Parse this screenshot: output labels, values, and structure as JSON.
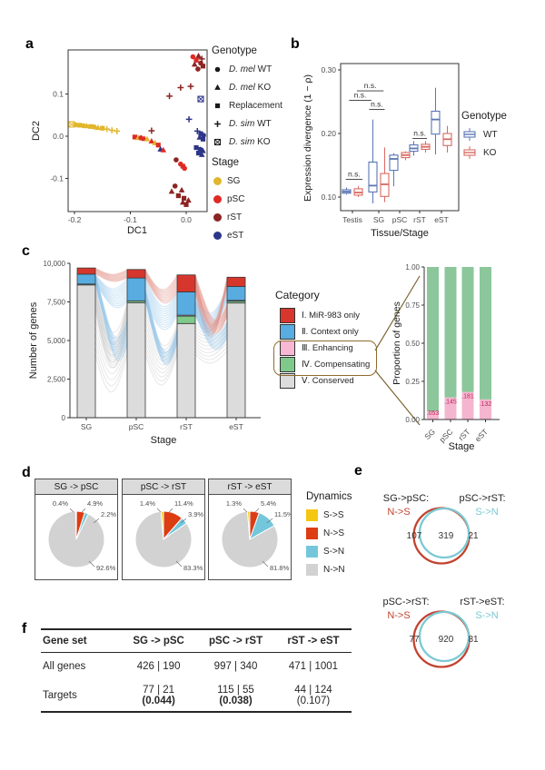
{
  "panels": {
    "a": "a",
    "b": "b",
    "c": "c",
    "d": "d",
    "e": "e",
    "f": "f"
  },
  "chart_data": [
    {
      "id": "a",
      "type": "scatter",
      "xlabel": "DC1",
      "ylabel": "DC2",
      "xticks": [
        -0.2,
        -0.1,
        0.0
      ],
      "xtick_labels": [
        "-0.2",
        "-0.1",
        "0.0"
      ],
      "yticks": [
        -0.1,
        0.0,
        0.1
      ],
      "ytick_labels": [
        "-0.1",
        "0.0",
        "0.1"
      ],
      "xlim": [
        -0.211,
        0.037
      ],
      "ylim": [
        -0.178,
        0.204
      ],
      "stage_colors": {
        "SG": "#E2B62C",
        "pSC": "#DF2A25",
        "rST": "#8C2423",
        "eST": "#2C3588"
      },
      "legend_genotype": {
        "title": "Genotype",
        "items": [
          {
            "shape": "circle",
            "italic": "D. mel",
            "rest": " WT"
          },
          {
            "shape": "triangle",
            "italic": "D. mel",
            "rest": " KO"
          },
          {
            "shape": "square",
            "italic": "",
            "rest": "Replacement"
          },
          {
            "shape": "plus",
            "italic": "D. sim",
            "rest": " WT"
          },
          {
            "shape": "boxx",
            "italic": "D. sim",
            "rest": " KO"
          }
        ]
      },
      "legend_stage": {
        "title": "Stage",
        "items": [
          {
            "label": "SG",
            "color": "#E2B62C"
          },
          {
            "label": "pSC",
            "color": "#DF2A25"
          },
          {
            "label": "rST",
            "color": "#8C2423"
          },
          {
            "label": "eST",
            "color": "#2C3588"
          }
        ]
      },
      "points": [
        [
          -0.205,
          0.028,
          "SG",
          "boxx"
        ],
        [
          -0.198,
          0.027,
          "SG",
          "circle"
        ],
        [
          -0.191,
          0.026,
          "SG",
          "square"
        ],
        [
          -0.184,
          0.025,
          "SG",
          "circle"
        ],
        [
          -0.178,
          0.024,
          "SG",
          "triangle"
        ],
        [
          -0.171,
          0.023,
          "SG",
          "square"
        ],
        [
          -0.165,
          0.022,
          "SG",
          "circle"
        ],
        [
          -0.158,
          0.02,
          "SG",
          "triangle"
        ],
        [
          -0.15,
          0.019,
          "SG",
          "square"
        ],
        [
          -0.142,
          0.017,
          "SG",
          "plus"
        ],
        [
          -0.133,
          0.014,
          "SG",
          "plus"
        ],
        [
          -0.124,
          0.012,
          "SG",
          "plus"
        ],
        [
          -0.062,
          0.013,
          "rST",
          "plus"
        ],
        [
          -0.092,
          -0.002,
          "pSC",
          "square"
        ],
        [
          -0.086,
          -0.004,
          "SG",
          "triangle"
        ],
        [
          -0.081,
          -0.004,
          "pSC",
          "circle"
        ],
        [
          -0.075,
          -0.006,
          "pSC",
          "triangle"
        ],
        [
          -0.07,
          -0.007,
          "SG",
          "triangle"
        ],
        [
          -0.062,
          -0.012,
          "pSC",
          "triangle"
        ],
        [
          -0.056,
          -0.016,
          "SG",
          "triangle"
        ],
        [
          -0.05,
          -0.021,
          "pSC",
          "square"
        ],
        [
          -0.046,
          -0.031,
          "eST",
          "triangle"
        ],
        [
          -0.041,
          -0.033,
          "pSC",
          "triangle"
        ],
        [
          -0.018,
          -0.056,
          "rST",
          "circle"
        ],
        [
          -0.01,
          -0.066,
          "pSC",
          "circle"
        ],
        [
          -0.006,
          -0.071,
          "pSC",
          "square"
        ],
        [
          -0.003,
          -0.076,
          "pSC",
          "circle"
        ],
        [
          -0.02,
          -0.118,
          "rST",
          "circle"
        ],
        [
          -0.026,
          -0.131,
          "rST",
          "triangle"
        ],
        [
          -0.008,
          -0.128,
          "rST",
          "triangle"
        ],
        [
          -0.014,
          -0.141,
          "rST",
          "square"
        ],
        [
          -0.004,
          -0.147,
          "rST",
          "square"
        ],
        [
          0.004,
          -0.152,
          "rST",
          "triangle"
        ],
        [
          -0.006,
          -0.157,
          "rST",
          "triangle"
        ],
        [
          0.0,
          -0.162,
          "rST",
          "square"
        ],
        [
          0.012,
          0.188,
          "pSC",
          "circle"
        ],
        [
          0.022,
          0.19,
          "rST",
          "triangle"
        ],
        [
          0.028,
          0.183,
          "rST",
          "plus"
        ],
        [
          0.018,
          0.18,
          "pSC",
          "square"
        ],
        [
          0.026,
          0.173,
          "rST",
          "circle"
        ],
        [
          0.015,
          0.17,
          "rST",
          "triangle"
        ],
        [
          0.03,
          0.166,
          "rST",
          "square"
        ],
        [
          0.021,
          0.159,
          "rST",
          "circle"
        ],
        [
          -0.01,
          0.115,
          "rST",
          "plus"
        ],
        [
          0.008,
          0.118,
          "rST",
          "plus"
        ],
        [
          -0.03,
          0.095,
          "rST",
          "plus"
        ],
        [
          0.026,
          0.088,
          "eST",
          "boxx"
        ],
        [
          0.005,
          0.04,
          "eST",
          "plus"
        ],
        [
          0.02,
          0.012,
          "eST",
          "plus"
        ],
        [
          0.026,
          0.006,
          "eST",
          "square"
        ],
        [
          0.031,
          0.002,
          "eST",
          "circle"
        ],
        [
          0.024,
          -0.003,
          "eST",
          "triangle"
        ],
        [
          0.03,
          -0.007,
          "eST",
          "square"
        ],
        [
          0.018,
          -0.027,
          "eST",
          "square"
        ],
        [
          0.025,
          -0.031,
          "eST",
          "circle"
        ],
        [
          0.03,
          -0.035,
          "eST",
          "triangle"
        ],
        [
          0.022,
          -0.04,
          "eST",
          "square"
        ],
        [
          0.028,
          -0.044,
          "eST",
          "triangle"
        ]
      ]
    },
    {
      "id": "b",
      "type": "box",
      "ylabel": "Expression divergence (1 − ρ)",
      "xlabel": "Tissue/Stage",
      "yticks": [
        0.1,
        0.2,
        0.3
      ],
      "ytick_labels": [
        "0.10",
        "0.20",
        "0.30"
      ],
      "categories": [
        "Testis",
        "SG",
        "pSC",
        "rST",
        "eST"
      ],
      "series": [
        {
          "name": "WT",
          "color": "#5B76B4",
          "boxes": [
            {
              "lo": 0.104,
              "q1": 0.106,
              "med": 0.1085,
              "q3": 0.1115,
              "hi": 0.115
            },
            {
              "lo": 0.09,
              "q1": 0.108,
              "med": 0.118,
              "q3": 0.155,
              "hi": 0.222
            },
            {
              "lo": 0.117,
              "q1": 0.142,
              "med": 0.16,
              "q3": 0.166,
              "hi": 0.169
            },
            {
              "lo": 0.165,
              "q1": 0.172,
              "med": 0.1765,
              "q3": 0.182,
              "hi": 0.188
            },
            {
              "lo": 0.167,
              "q1": 0.199,
              "med": 0.222,
              "q3": 0.235,
              "hi": 0.272
            }
          ]
        },
        {
          "name": "KO",
          "color": "#D96A62",
          "boxes": [
            {
              "lo": 0.1,
              "q1": 0.103,
              "med": 0.107,
              "q3": 0.113,
              "hi": 0.117
            },
            {
              "lo": 0.092,
              "q1": 0.101,
              "med": 0.12,
              "q3": 0.137,
              "hi": 0.178
            },
            {
              "lo": 0.158,
              "q1": 0.162,
              "med": 0.166,
              "q3": 0.17,
              "hi": 0.172
            },
            {
              "lo": 0.17,
              "q1": 0.175,
              "med": 0.179,
              "q3": 0.183,
              "hi": 0.188
            },
            {
              "lo": 0.17,
              "q1": 0.181,
              "med": 0.191,
              "q3": 0.2,
              "hi": 0.212
            }
          ]
        }
      ],
      "ns_label": "n.s.",
      "ns": [
        {
          "x1": -0.3,
          "x2": 0.45,
          "y": 0.128
        },
        {
          "x1": -0.15,
          "x2": 0.85,
          "y": 0.252
        },
        {
          "x1": 0.2,
          "x2": 1.4,
          "y": 0.267
        },
        {
          "x1": 0.75,
          "x2": 1.45,
          "y": 0.238
        },
        {
          "x1": 2.7,
          "x2": 3.35,
          "y": 0.192
        }
      ],
      "legend": {
        "title": "Genotype",
        "items": [
          {
            "label": "WT",
            "color": "#5B76B4"
          },
          {
            "label": "KO",
            "color": "#D96A62"
          }
        ]
      }
    },
    {
      "id": "c_left",
      "type": "bar",
      "ylabel": "Number of genes",
      "xlabel": "Stage",
      "categories": [
        "SG",
        "pSC",
        "rST",
        "eST"
      ],
      "yticks": [
        0,
        2500,
        5000,
        7500,
        10000
      ],
      "ytick_labels": [
        "0",
        "2,500",
        "5,000",
        "7,500",
        "10,000"
      ],
      "ylim": [
        0,
        10000
      ],
      "series": [
        {
          "name": "Ⅴ. Conserved",
          "color": "#DCDCDC",
          "values": [
            8600,
            7450,
            6100,
            7430
          ]
        },
        {
          "name": "Ⅳ. Compensating",
          "color": "#7FC98B",
          "values": [
            60,
            120,
            480,
            120
          ]
        },
        {
          "name": "Ⅲ. Enhancing",
          "color": "#F8B8D3",
          "values": [
            0,
            0,
            60,
            50
          ]
        },
        {
          "name": "Ⅱ. Context only",
          "color": "#58ACE0",
          "values": [
            640,
            1480,
            1510,
            900
          ]
        },
        {
          "name": "Ⅰ. MiR-983 only",
          "color": "#D6362C",
          "values": [
            400,
            550,
            1100,
            600
          ]
        }
      ],
      "legend": {
        "title": "Category",
        "items": [
          {
            "label": "Ⅰ. MiR-983 only",
            "color": "#D6362C"
          },
          {
            "label": "Ⅱ. Context only",
            "color": "#58ACE0"
          },
          {
            "label": "Ⅲ. Enhancing",
            "color": "#F8B8D3"
          },
          {
            "label": "Ⅳ. Compensating",
            "color": "#7FC98B"
          },
          {
            "label": "Ⅴ. Conserved",
            "color": "#DCDCDC"
          }
        ]
      },
      "flows": [
        {
          "f": 0,
          "t": 1,
          "s0": [
            4100,
            8600
          ],
          "s1": [
            4100,
            7450
          ],
          "c": "gray",
          "sag": 55
        },
        {
          "f": 0,
          "t": 1,
          "s0": [
            7000,
            8600
          ],
          "s1": [
            5800,
            7450
          ],
          "c": "gray",
          "sag": 70
        },
        {
          "f": 0,
          "t": 1,
          "s0": [
            8650,
            9280
          ],
          "s1": [
            4750,
            6400
          ],
          "c": "blue",
          "sag": 50
        },
        {
          "f": 0,
          "t": 1,
          "s0": [
            8650,
            9280
          ],
          "s1": [
            7560,
            9020
          ],
          "c": "blue",
          "sag": 18
        },
        {
          "f": 0,
          "t": 1,
          "s0": [
            9320,
            9690
          ],
          "s1": [
            9080,
            9590
          ],
          "c": "red",
          "sag": 8
        },
        {
          "f": 1,
          "t": 2,
          "s0": [
            4100,
            7450
          ],
          "s1": [
            4100,
            6100
          ],
          "c": "gray",
          "sag": 45
        },
        {
          "f": 1,
          "t": 2,
          "s0": [
            7560,
            9020
          ],
          "s1": [
            6670,
            8140
          ],
          "c": "blue",
          "sag": 30
        },
        {
          "f": 1,
          "t": 2,
          "s0": [
            7560,
            8300
          ],
          "s1": [
            4900,
            5800
          ],
          "c": "blue",
          "sag": 55
        },
        {
          "f": 1,
          "t": 2,
          "s0": [
            9080,
            9590
          ],
          "s1": [
            8160,
            9240
          ],
          "c": "red",
          "sag": 25
        },
        {
          "f": 2,
          "t": 3,
          "s0": [
            4100,
            6100
          ],
          "s1": [
            4300,
            7000
          ],
          "c": "gray",
          "sag": 15
        },
        {
          "f": 2,
          "t": 3,
          "s0": [
            6670,
            8140
          ],
          "s1": [
            7610,
            8490
          ],
          "c": "blue",
          "sag": 35
        },
        {
          "f": 2,
          "t": 3,
          "s0": [
            8160,
            9240
          ],
          "s1": [
            8560,
            9090
          ],
          "c": "red",
          "sag": 70
        },
        {
          "f": 2,
          "t": 3,
          "s0": [
            8300,
            9240
          ],
          "s1": [
            6600,
            7400
          ],
          "c": "red",
          "sag": 40
        },
        {
          "f": 2,
          "t": 3,
          "s0": [
            6670,
            7600
          ],
          "s1": [
            5200,
            6200
          ],
          "c": "blue",
          "sag": 30
        }
      ]
    },
    {
      "id": "c_right",
      "type": "bar",
      "ylabel": "Proportion of genes",
      "xlabel": "Stage",
      "categories": [
        "SG",
        "pSC",
        "rST",
        "eST"
      ],
      "ytick_labels": [
        "0.00",
        "0.25",
        "0.50",
        "0.75",
        "1.00"
      ],
      "pink_values": [
        0.053,
        0.145,
        0.181,
        0.132
      ],
      "pink_labels": [
        ".053",
        ".145",
        ".181",
        ".132"
      ],
      "pink_color": "#F4B6CF",
      "green_color": "#8BC79B",
      "label_color": "#C2255C"
    },
    {
      "id": "d",
      "type": "pie",
      "legend": {
        "title": "Dynamics",
        "items": [
          {
            "label": "S->S",
            "color": "#F5C712"
          },
          {
            "label": "N->S",
            "color": "#DC3D13"
          },
          {
            "label": "S->N",
            "color": "#74C7DA"
          },
          {
            "label": "N->N",
            "color": "#D2D2D2"
          }
        ]
      },
      "facets": [
        {
          "title": "SG -> pSC",
          "slices": [
            {
              "name": "N->S",
              "pct": 4.9,
              "label": "4.9%"
            },
            {
              "name": "S->N",
              "pct": 2.2,
              "label": "2.2%"
            },
            {
              "name": "N->N",
              "pct": 92.6,
              "label": "92.6%"
            },
            {
              "name": "S->S",
              "pct": 0.4,
              "label": "0.4%"
            }
          ]
        },
        {
          "title": "pSC -> rST",
          "slices": [
            {
              "name": "N->S",
              "pct": 11.4,
              "label": "11.4%"
            },
            {
              "name": "S->N",
              "pct": 3.9,
              "label": "3.9%"
            },
            {
              "name": "N->N",
              "pct": 83.3,
              "label": "83.3%"
            },
            {
              "name": "S->S",
              "pct": 1.4,
              "label": "1.4%"
            }
          ]
        },
        {
          "title": "rST -> eST",
          "slices": [
            {
              "name": "N->S",
              "pct": 5.4,
              "label": "5.4%"
            },
            {
              "name": "S->N",
              "pct": 11.5,
              "label": "11.5%"
            },
            {
              "name": "N->N",
              "pct": 81.8,
              "label": "81.8%"
            },
            {
              "name": "S->S",
              "pct": 1.3,
              "label": "1.3%"
            }
          ]
        }
      ]
    },
    {
      "id": "e",
      "type": "venn",
      "left_color": "#C2432F",
      "right_color": "#7CC9D3",
      "venns": [
        {
          "left_title": "SG->pSC:",
          "left_sub": "N->S",
          "right_title": "pSC->rST:",
          "right_sub": "S->N",
          "left": "107",
          "mid": "319",
          "right": "21"
        },
        {
          "left_title": "pSC->rST:",
          "left_sub": "N->S",
          "right_title": "rST->eST:",
          "right_sub": "S->N",
          "left": "77",
          "mid": "920",
          "right": "81"
        }
      ]
    },
    {
      "id": "f",
      "type": "table",
      "headers": [
        "Gene set",
        "SG -> pSC",
        "pSC -> rST",
        "rST -> eST"
      ],
      "rows": [
        {
          "name": "All genes",
          "cells": [
            {
              "l1": "426 | 190"
            },
            {
              "l1": "997 | 340"
            },
            {
              "l1": "471 | 1001"
            }
          ]
        },
        {
          "name": "Targets",
          "cells": [
            {
              "l1": "77 | 21",
              "l2": "(0.044)",
              "bold": true
            },
            {
              "l1": "115 | 55",
              "l2": "(0.038)",
              "bold": true
            },
            {
              "l1": "44 | 124",
              "l2": "(0.107)",
              "bold": false
            }
          ]
        }
      ]
    }
  ]
}
